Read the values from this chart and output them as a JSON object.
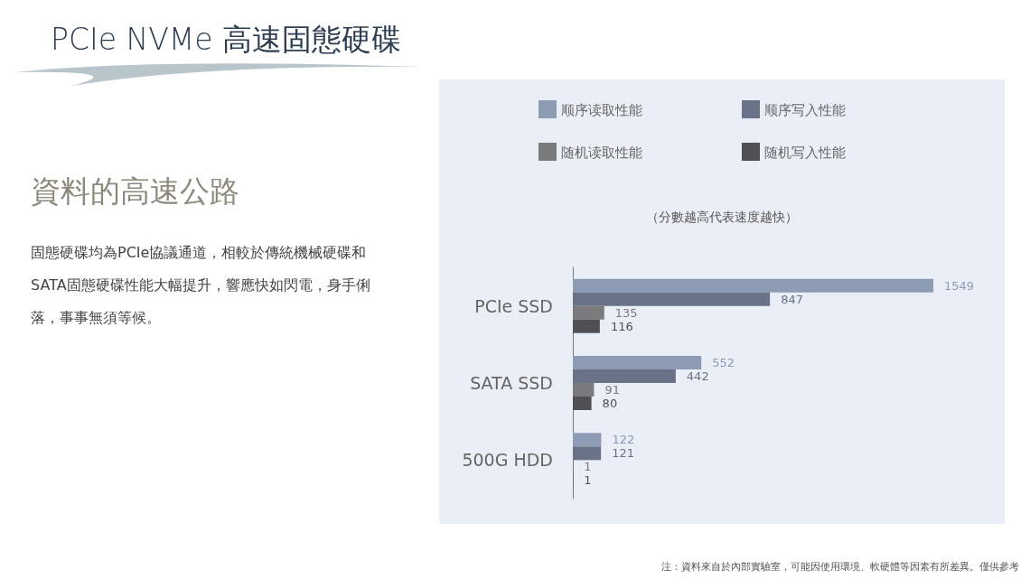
{
  "chart_data": {
    "type": "bar",
    "orientation": "horizontal",
    "title": "PCIe NVMe 高速固態硬碟",
    "subtitle": "資料的高速公路",
    "annotations": [
      "固態硬碟均為PCIe協議通道，相較於傳統機械硬碟和SATA固態硬碟性能大幅提升，響應快如閃電，身手俐落，事事無須等候。",
      "（分數越高代表速度越快）",
      "注：資料來自於內部實驗室，可能因使用環境、軟硬體等因素有所差異。僅供參考"
    ],
    "categories": [
      "PCIe SSD",
      "SATA SSD",
      "500G HDD"
    ],
    "series": [
      {
        "name": "顺序读取性能",
        "color": "#8e9bb4",
        "values": [
          1549,
          552,
          122
        ]
      },
      {
        "name": "顺序写入性能",
        "color": "#6a7287",
        "values": [
          847,
          442,
          121
        ]
      },
      {
        "name": "随机读取性能",
        "color": "#7b7b7e",
        "values": [
          135,
          91,
          1
        ]
      },
      {
        "name": "随机写入性能",
        "color": "#4f4f54",
        "values": [
          116,
          80,
          1
        ]
      }
    ],
    "data_labels": true,
    "legend": "top",
    "grid": false,
    "tick_labels": "y"
  }
}
